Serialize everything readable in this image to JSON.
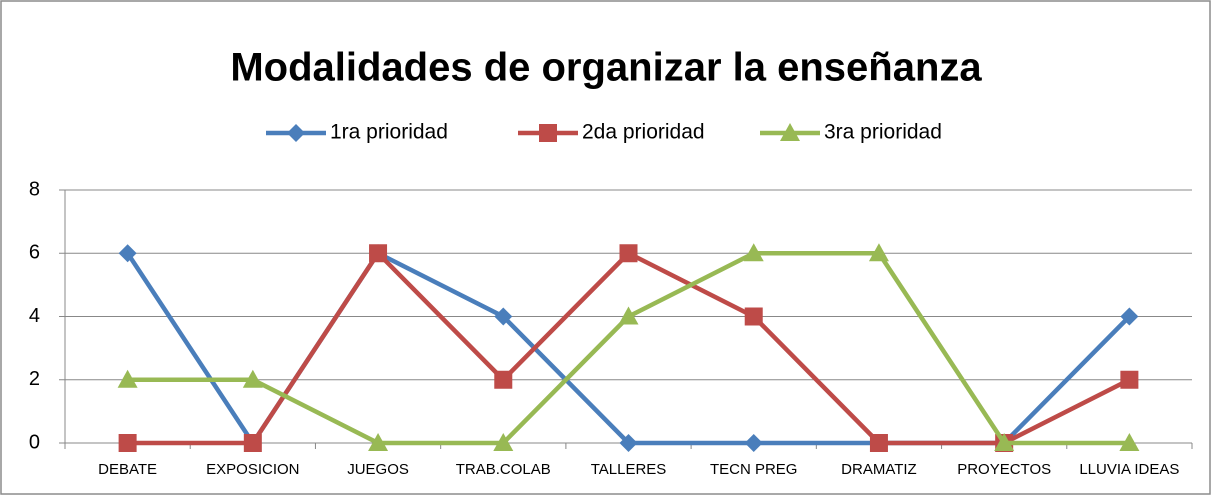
{
  "chart_data": {
    "type": "line",
    "title": "Modalidades de organizar la enseñanza",
    "categories": [
      "DEBATE",
      "EXPOSICION",
      "JUEGOS",
      "TRAB.COLAB",
      "TALLERES",
      "TECN PREG",
      "DRAMATIZ",
      "PROYECTOS",
      "LLUVIA IDEAS"
    ],
    "series": [
      {
        "name": "1ra prioridad",
        "color": "#4a7ebb",
        "marker": "diamond",
        "values": [
          6,
          0,
          6,
          4,
          0,
          0,
          0,
          0,
          4
        ]
      },
      {
        "name": "2da prioridad",
        "color": "#be4b48",
        "marker": "square",
        "values": [
          0,
          0,
          6,
          2,
          6,
          4,
          0,
          0,
          2
        ]
      },
      {
        "name": "3ra prioridad",
        "color": "#98b954",
        "marker": "triangle",
        "values": [
          2,
          2,
          0,
          0,
          4,
          6,
          6,
          0,
          0
        ]
      }
    ],
    "ylim": [
      0,
      8
    ],
    "yticks": [
      0,
      2,
      4,
      6,
      8
    ],
    "grid": true,
    "legend": "top"
  }
}
